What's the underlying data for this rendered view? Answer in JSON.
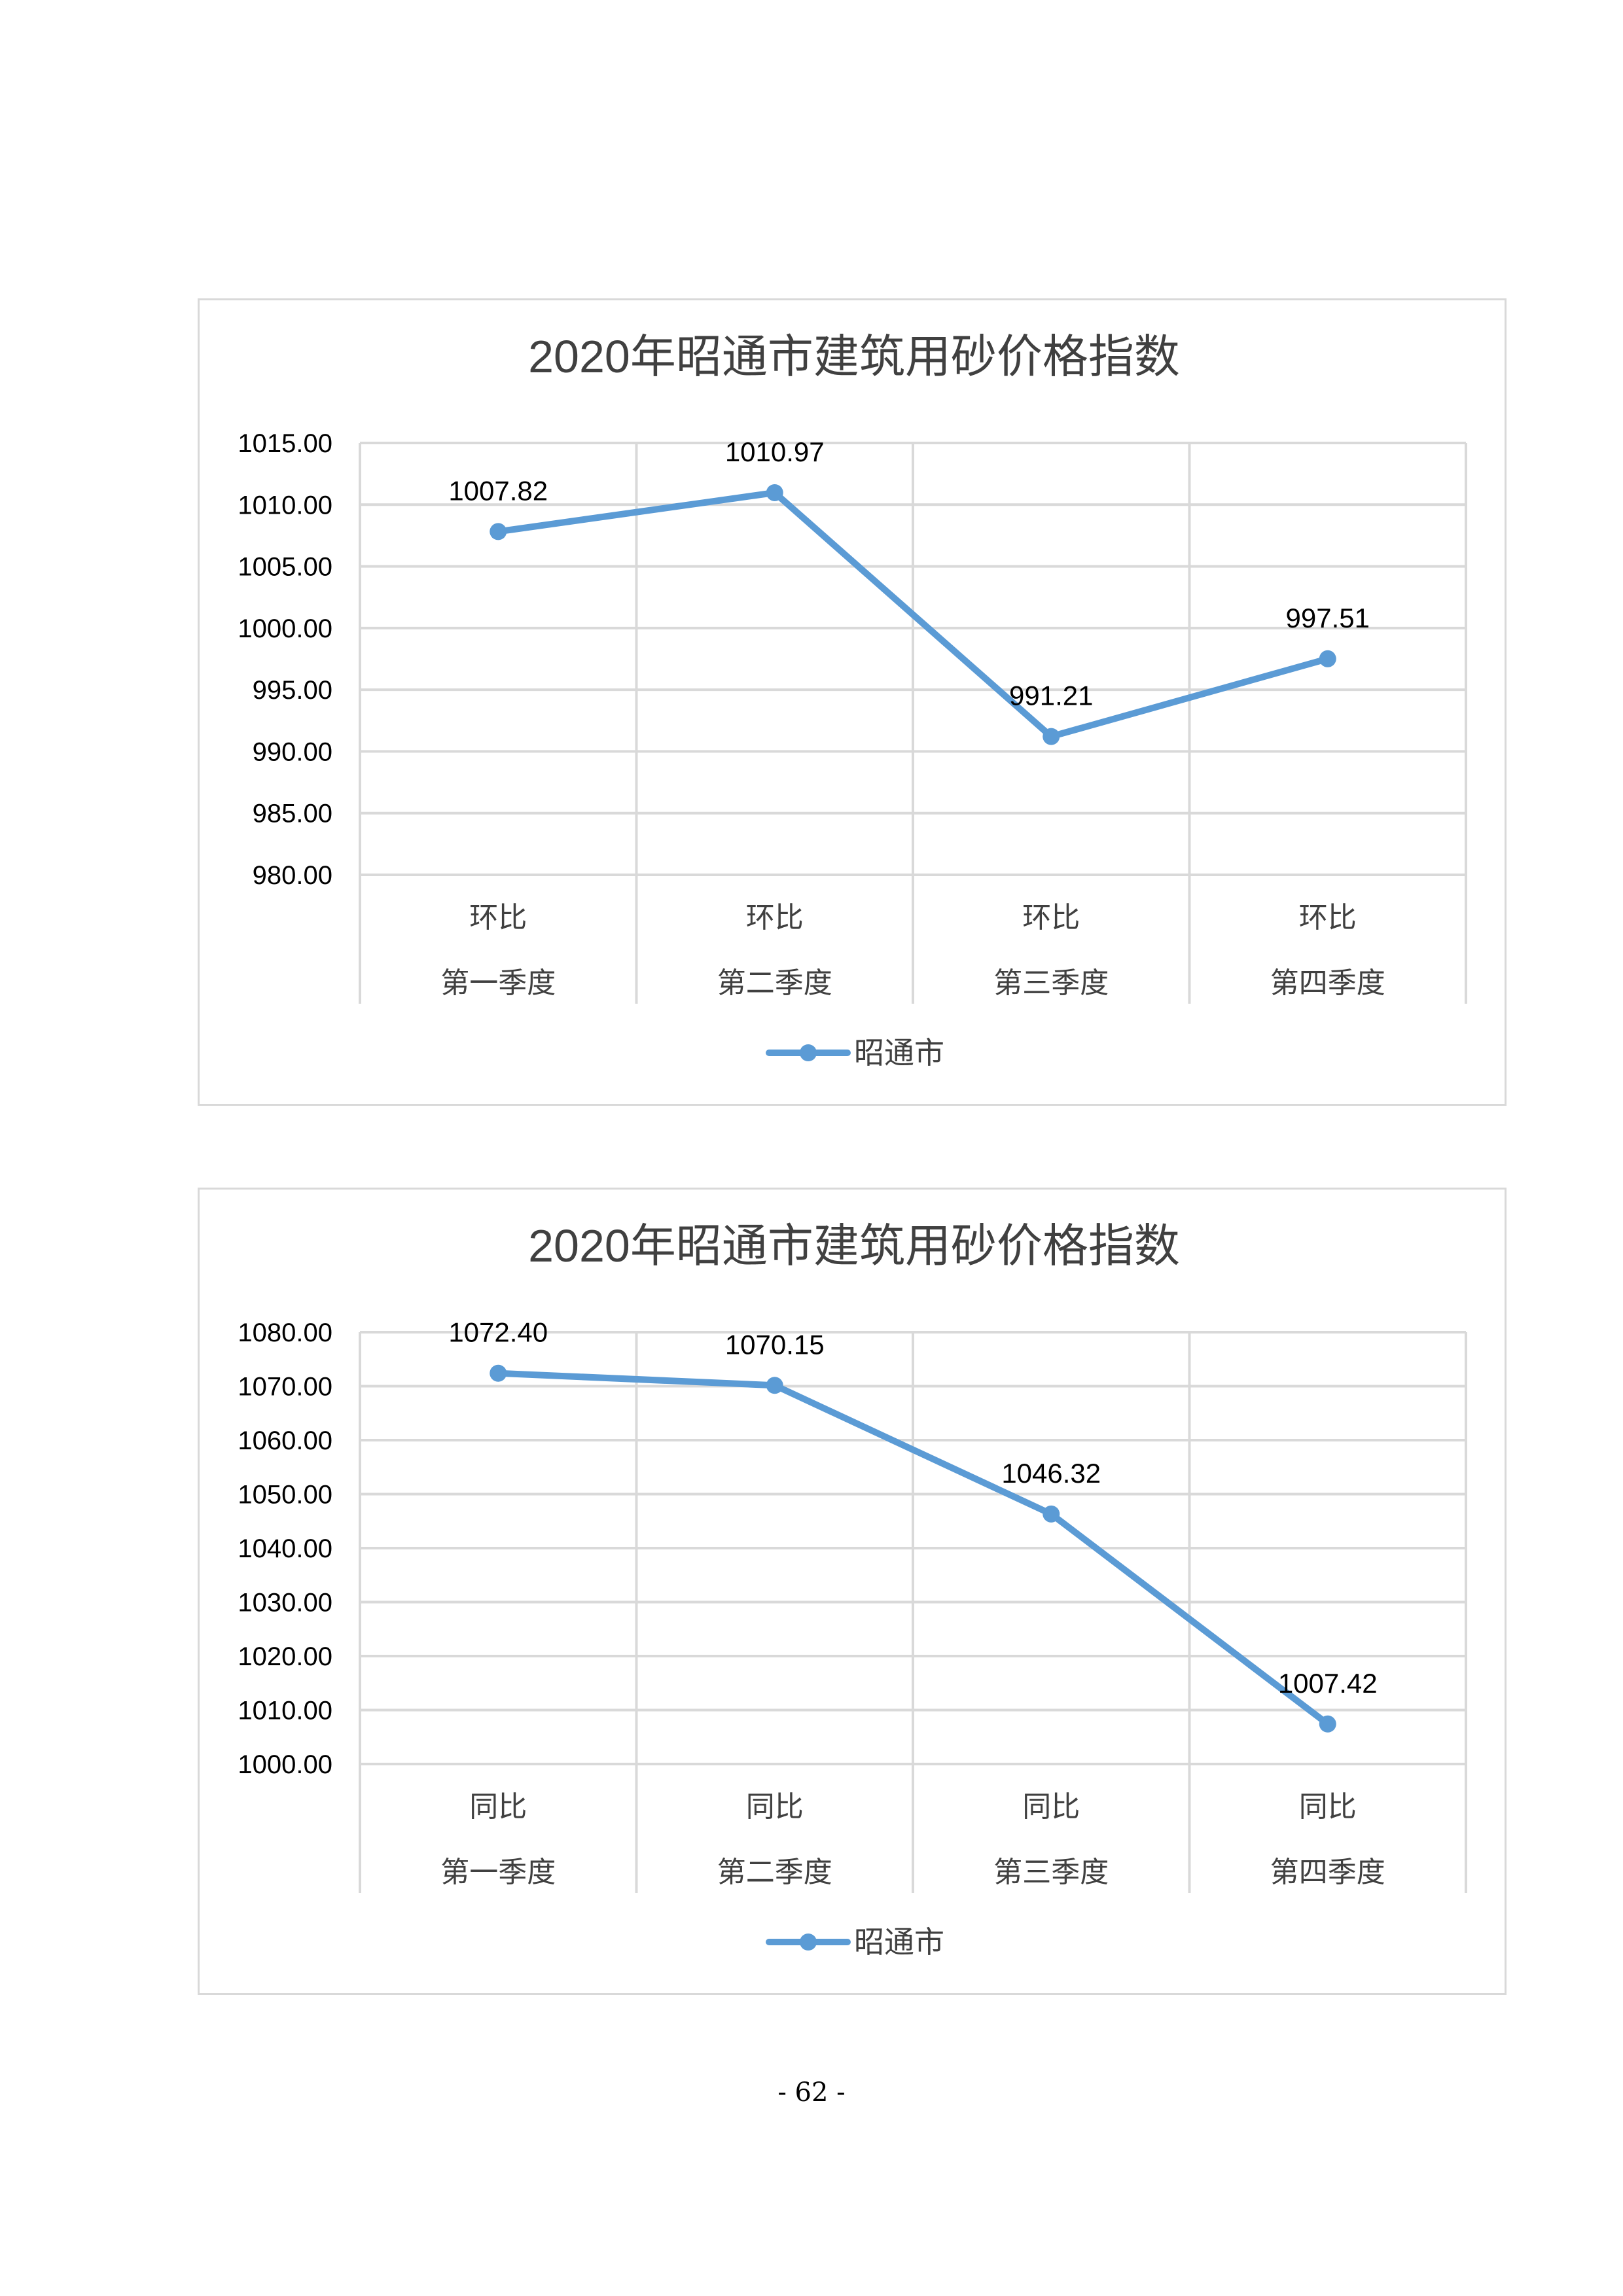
{
  "chart_data": [
    {
      "type": "line",
      "title": "2020年昭通市建筑用砂价格指数",
      "categories": [
        [
          "环比",
          "第一季度"
        ],
        [
          "环比",
          "第二季度"
        ],
        [
          "环比",
          "第三季度"
        ],
        [
          "环比",
          "第四季度"
        ]
      ],
      "series": [
        {
          "name": "昭通市",
          "values": [
            1007.82,
            1010.97,
            991.21,
            997.51
          ]
        }
      ],
      "data_labels": [
        "1007.82",
        "1010.97",
        "991.21",
        "997.51"
      ],
      "ylim": [
        980,
        1015
      ],
      "yticks": [
        1015,
        1010,
        1005,
        1000,
        995,
        990,
        985,
        980
      ],
      "ytick_labels": [
        "1015.00",
        "1010.00",
        "1005.00",
        "1000.00",
        "995.00",
        "990.00",
        "985.00",
        "980.00"
      ],
      "grid": true,
      "legend": "bottom",
      "color": "#5b9bd5"
    },
    {
      "type": "line",
      "title": "2020年昭通市建筑用砂价格指数",
      "categories": [
        [
          "同比",
          "第一季度"
        ],
        [
          "同比",
          "第二季度"
        ],
        [
          "同比",
          "第三季度"
        ],
        [
          "同比",
          "第四季度"
        ]
      ],
      "series": [
        {
          "name": "昭通市",
          "values": [
            1072.4,
            1070.15,
            1046.32,
            1007.42
          ]
        }
      ],
      "data_labels": [
        "1072.40",
        "1070.15",
        "1046.32",
        "1007.42"
      ],
      "ylim": [
        1000,
        1080
      ],
      "yticks": [
        1080,
        1070,
        1060,
        1050,
        1040,
        1030,
        1020,
        1010,
        1000
      ],
      "ytick_labels": [
        "1080.00",
        "1070.00",
        "1060.00",
        "1050.00",
        "1040.00",
        "1030.00",
        "1020.00",
        "1010.00",
        "1000.00"
      ],
      "grid": true,
      "legend": "bottom",
      "color": "#5b9bd5"
    }
  ],
  "page_number": "- 62 -"
}
